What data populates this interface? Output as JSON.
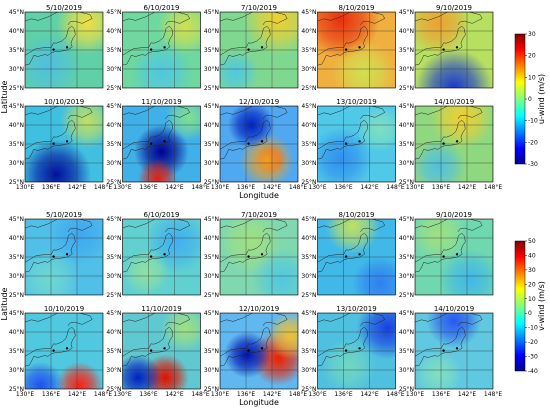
{
  "xlabel": "Longitude",
  "ylabel": "Latitude",
  "lon_lim": [
    130,
    148
  ],
  "lat_lim": [
    25,
    45
  ],
  "lon_ticks": [
    {
      "value": 130,
      "label": "130°E"
    },
    {
      "value": 136,
      "label": "136°E"
    },
    {
      "value": 142,
      "label": "142°E"
    },
    {
      "value": 148,
      "label": "148°E"
    }
  ],
  "lat_ticks": [
    {
      "value": 45,
      "label": "45°N"
    },
    {
      "value": 40,
      "label": "40°N"
    },
    {
      "value": 35,
      "label": "35°N"
    },
    {
      "value": 30,
      "label": "30°N"
    },
    {
      "value": 25,
      "label": "25°N"
    }
  ],
  "figures": [
    {
      "colorbar": {
        "label": "u-wind (m/s)",
        "lim": [
          -30,
          30
        ],
        "ticks": [
          30,
          20,
          10,
          0,
          -10,
          -20,
          -30
        ]
      },
      "panels": [
        {
          "title": "5/10/2019"
        },
        {
          "title": "6/10/2019"
        },
        {
          "title": "7/10/2019"
        },
        {
          "title": "8/10/2019"
        },
        {
          "title": "9/10/2019"
        },
        {
          "title": "10/10/2019"
        },
        {
          "title": "11/10/2019"
        },
        {
          "title": "12/10/2019"
        },
        {
          "title": "13/10/2019"
        },
        {
          "title": "14/10/2019"
        }
      ]
    },
    {
      "colorbar": {
        "label": "v-wind (m/s)",
        "lim": [
          -40,
          50
        ],
        "ticks": [
          50,
          40,
          30,
          20,
          10,
          0,
          -10,
          -20,
          -30,
          -40
        ]
      },
      "panels": [
        {
          "title": "5/10/2019"
        },
        {
          "title": "6/10/2019"
        },
        {
          "title": "7/10/2019"
        },
        {
          "title": "8/10/2019"
        },
        {
          "title": "9/10/2019"
        },
        {
          "title": "10/10/2019"
        },
        {
          "title": "11/10/2019"
        },
        {
          "title": "12/10/2019"
        },
        {
          "title": "13/10/2019"
        },
        {
          "title": "14/10/2019"
        }
      ]
    }
  ]
}
